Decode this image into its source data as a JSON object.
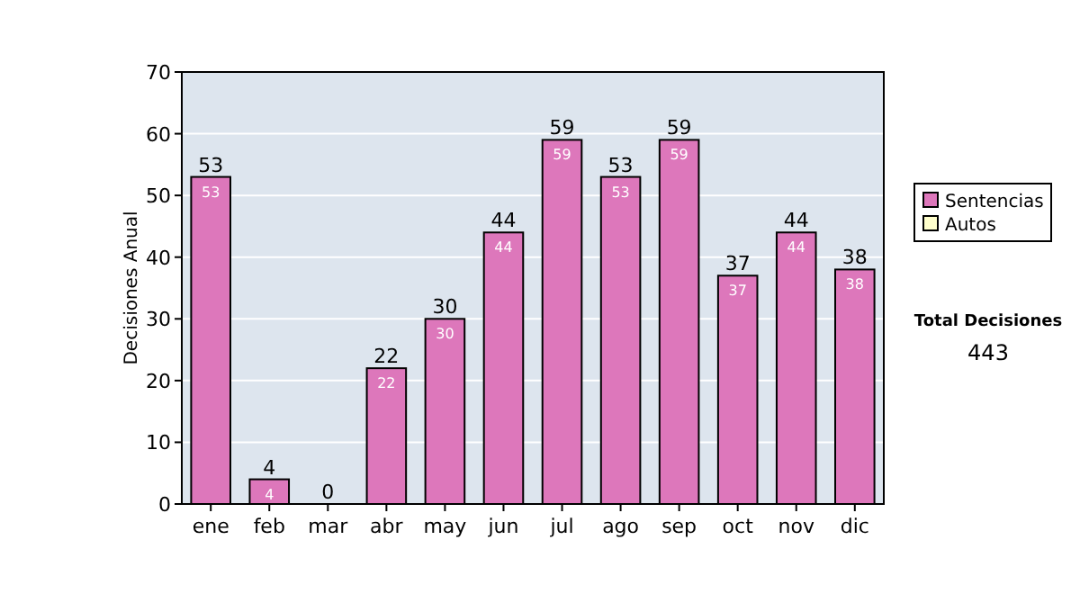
{
  "chart_data": {
    "type": "bar",
    "stacked": true,
    "ylabel": "Decisiones Anual",
    "categories": [
      "ene",
      "feb",
      "mar",
      "abr",
      "may",
      "jun",
      "jul",
      "ago",
      "sep",
      "oct",
      "nov",
      "dic"
    ],
    "series": [
      {
        "name": "Sentencias",
        "color": "#dd77bb",
        "values": [
          53,
          4,
          0,
          22,
          30,
          44,
          59,
          53,
          59,
          37,
          44,
          38
        ],
        "value_labels": [
          "53",
          "4",
          null,
          "22",
          "30",
          "44",
          "59",
          "53",
          "59",
          "37",
          "44",
          "38"
        ]
      },
      {
        "name": "Autos",
        "color": "#ffffcc",
        "values": [
          0,
          0,
          0,
          0,
          0,
          0,
          0,
          0,
          0,
          0,
          0,
          0
        ]
      }
    ],
    "totals": [
      "53",
      "4",
      "0",
      "22",
      "30",
      "44",
      "59",
      "53",
      "59",
      "37",
      "44",
      "38"
    ],
    "ylim": [
      0,
      70
    ],
    "yticks": [
      0,
      10,
      20,
      30,
      40,
      50,
      60,
      70
    ],
    "grid": "y",
    "legend": "right",
    "annotations": [
      "Total Decisiones",
      "443"
    ]
  }
}
